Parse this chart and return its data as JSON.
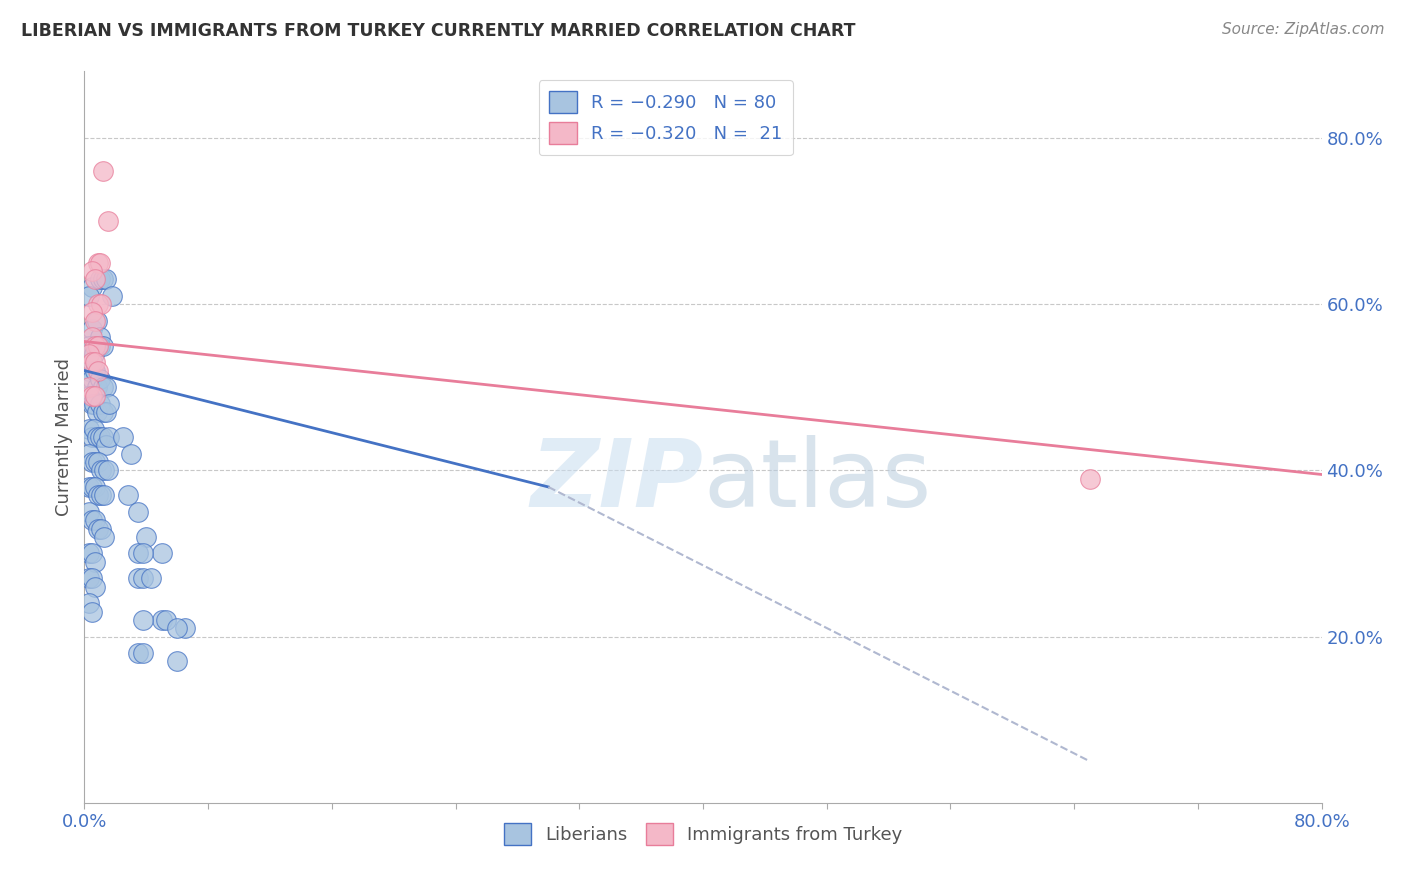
{
  "title": "LIBERIAN VS IMMIGRANTS FROM TURKEY CURRENTLY MARRIED CORRELATION CHART",
  "source": "Source: ZipAtlas.com",
  "ylabel": "Currently Married",
  "right_yticks": [
    "80.0%",
    "60.0%",
    "40.0%",
    "20.0%"
  ],
  "right_ytick_vals": [
    0.8,
    0.6,
    0.4,
    0.2
  ],
  "xlim": [
    0.0,
    0.8
  ],
  "ylim": [
    0.0,
    0.88
  ],
  "blue_dots": [
    [
      0.005,
      0.62
    ],
    [
      0.01,
      0.63
    ],
    [
      0.012,
      0.63
    ],
    [
      0.014,
      0.63
    ],
    [
      0.003,
      0.61
    ],
    [
      0.018,
      0.61
    ],
    [
      0.005,
      0.57
    ],
    [
      0.008,
      0.58
    ],
    [
      0.01,
      0.56
    ],
    [
      0.003,
      0.55
    ],
    [
      0.006,
      0.54
    ],
    [
      0.008,
      0.55
    ],
    [
      0.01,
      0.55
    ],
    [
      0.012,
      0.55
    ],
    [
      0.003,
      0.52
    ],
    [
      0.005,
      0.51
    ],
    [
      0.007,
      0.52
    ],
    [
      0.008,
      0.5
    ],
    [
      0.01,
      0.51
    ],
    [
      0.012,
      0.5
    ],
    [
      0.014,
      0.5
    ],
    [
      0.003,
      0.49
    ],
    [
      0.005,
      0.48
    ],
    [
      0.006,
      0.48
    ],
    [
      0.008,
      0.47
    ],
    [
      0.01,
      0.48
    ],
    [
      0.012,
      0.47
    ],
    [
      0.014,
      0.47
    ],
    [
      0.016,
      0.48
    ],
    [
      0.003,
      0.45
    ],
    [
      0.005,
      0.44
    ],
    [
      0.006,
      0.45
    ],
    [
      0.008,
      0.44
    ],
    [
      0.01,
      0.44
    ],
    [
      0.012,
      0.44
    ],
    [
      0.014,
      0.43
    ],
    [
      0.016,
      0.44
    ],
    [
      0.003,
      0.42
    ],
    [
      0.005,
      0.41
    ],
    [
      0.007,
      0.41
    ],
    [
      0.009,
      0.41
    ],
    [
      0.011,
      0.4
    ],
    [
      0.013,
      0.4
    ],
    [
      0.015,
      0.4
    ],
    [
      0.003,
      0.38
    ],
    [
      0.005,
      0.38
    ],
    [
      0.007,
      0.38
    ],
    [
      0.009,
      0.37
    ],
    [
      0.011,
      0.37
    ],
    [
      0.013,
      0.37
    ],
    [
      0.003,
      0.35
    ],
    [
      0.005,
      0.34
    ],
    [
      0.007,
      0.34
    ],
    [
      0.009,
      0.33
    ],
    [
      0.011,
      0.33
    ],
    [
      0.013,
      0.32
    ],
    [
      0.003,
      0.3
    ],
    [
      0.005,
      0.3
    ],
    [
      0.007,
      0.29
    ],
    [
      0.003,
      0.27
    ],
    [
      0.005,
      0.27
    ],
    [
      0.007,
      0.26
    ],
    [
      0.003,
      0.24
    ],
    [
      0.005,
      0.23
    ],
    [
      0.025,
      0.44
    ],
    [
      0.03,
      0.42
    ],
    [
      0.028,
      0.37
    ],
    [
      0.035,
      0.35
    ],
    [
      0.04,
      0.32
    ],
    [
      0.05,
      0.3
    ],
    [
      0.035,
      0.3
    ],
    [
      0.038,
      0.3
    ],
    [
      0.035,
      0.27
    ],
    [
      0.038,
      0.27
    ],
    [
      0.043,
      0.27
    ],
    [
      0.05,
      0.22
    ],
    [
      0.053,
      0.22
    ],
    [
      0.038,
      0.22
    ],
    [
      0.065,
      0.21
    ],
    [
      0.035,
      0.18
    ],
    [
      0.038,
      0.18
    ],
    [
      0.06,
      0.21
    ],
    [
      0.06,
      0.17
    ]
  ],
  "pink_dots": [
    [
      0.012,
      0.76
    ],
    [
      0.015,
      0.7
    ],
    [
      0.009,
      0.65
    ],
    [
      0.01,
      0.65
    ],
    [
      0.005,
      0.64
    ],
    [
      0.007,
      0.63
    ],
    [
      0.009,
      0.6
    ],
    [
      0.011,
      0.6
    ],
    [
      0.005,
      0.59
    ],
    [
      0.007,
      0.58
    ],
    [
      0.005,
      0.56
    ],
    [
      0.007,
      0.55
    ],
    [
      0.009,
      0.55
    ],
    [
      0.003,
      0.54
    ],
    [
      0.005,
      0.53
    ],
    [
      0.007,
      0.53
    ],
    [
      0.009,
      0.52
    ],
    [
      0.003,
      0.5
    ],
    [
      0.005,
      0.49
    ],
    [
      0.007,
      0.49
    ],
    [
      0.65,
      0.39
    ]
  ],
  "blue_line": {
    "x": [
      0.0,
      0.3
    ],
    "y": [
      0.52,
      0.38
    ]
  },
  "blue_line_ext": {
    "x": [
      0.3,
      0.65
    ],
    "y": [
      0.38,
      0.05
    ]
  },
  "pink_line": {
    "x": [
      0.0,
      0.8
    ],
    "y": [
      0.555,
      0.395
    ]
  },
  "blue_color": "#4472c4",
  "pink_color": "#e87d9a",
  "blue_dot_color": "#a8c4e0",
  "pink_dot_color": "#f4b8c8",
  "dashed_line_color": "#b0b8d0",
  "grid_color": "#c8c8c8",
  "title_color": "#333333",
  "axis_color": "#4472c4",
  "label_color": "#555555"
}
